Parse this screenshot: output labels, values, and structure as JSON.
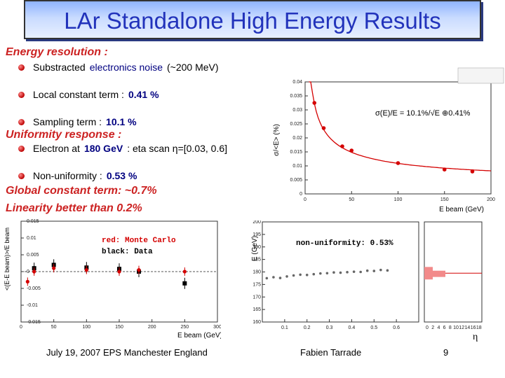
{
  "title": "LAr Standalone High Energy Results",
  "energy_resolution": {
    "heading": "Energy resolution :",
    "b1_pre": "Substracted ",
    "b1_hl": "electronics noise",
    "b1_post": " (~200 MeV)",
    "b2_pre": "Local constant term : ",
    "b2_hl": "0.41 %",
    "b3_pre": "Sampling term : ",
    "b3_hl": "10.1 %"
  },
  "uniformity": {
    "heading": "Uniformity response :",
    "b1_pre": "Electron at ",
    "b1_hl": "180 GeV",
    "b1_post": " : eta scan  η=[0.03, 0.6]",
    "b2_pre": "Non-uniformity : ",
    "b2_hl": "0.53 %"
  },
  "global_constant": "Global constant term: ~0.7%",
  "linearity": "Linearity better than 0.2%",
  "footer": {
    "date": "July 19, 2007  EPS Manchester England",
    "author": "Fabien Tarrade",
    "page": "9"
  },
  "chart_data": [
    {
      "type": "scatter",
      "title": "Energy resolution vs beam energy",
      "ylabel": "σ/<E> (%)",
      "xlabel": "E beam (GeV)",
      "annotation": "σ(E)/E = 10.1%/√E ⊕0.41%",
      "xlim": [
        0,
        200
      ],
      "ylim": [
        0,
        0.04
      ],
      "xticks": [
        "0",
        "50",
        "100",
        "150",
        "200"
      ],
      "yticks": [
        "0",
        "0.005",
        "0.01",
        "0.015",
        "0.02",
        "0.025",
        "0.03",
        "0.035",
        "0.04"
      ],
      "x": [
        10,
        20,
        40,
        50,
        100,
        150,
        180
      ],
      "y": [
        0.0325,
        0.0235,
        0.017,
        0.0155,
        0.011,
        0.0087,
        0.008
      ],
      "fit_terms": {
        "a": 0.101,
        "c": 0.0041
      }
    },
    {
      "type": "scatter",
      "title": "Linearity",
      "ylabel": "<(E-E beam)>/E beam",
      "xlabel": "E beam (GeV)",
      "legend": [
        "red: Monte Carlo",
        "black: Data"
      ],
      "xlim": [
        0,
        300
      ],
      "ylim": [
        -0.015,
        0.015
      ],
      "xticks": [
        "0",
        "50",
        "100",
        "150",
        "200",
        "250",
        "300"
      ],
      "yticks": [
        "0.015",
        "0.01",
        "0.005",
        "0",
        "-0.005",
        "-0.01",
        "-0.015"
      ],
      "series": [
        {
          "name": "Monte Carlo",
          "x": [
            10,
            20,
            50,
            100,
            150,
            180,
            250
          ],
          "y": [
            -0.003,
            0.0,
            0.001,
            0.0005,
            0.0,
            0.0005,
            0.0
          ]
        },
        {
          "name": "Data",
          "x": [
            20,
            50,
            100,
            150,
            180,
            250
          ],
          "y": [
            0.001,
            0.002,
            0.0012,
            0.0008,
            0.0,
            -0.0035
          ]
        }
      ]
    },
    {
      "type": "scatter",
      "title": "Uniformity",
      "ylabel": "E (GeV)",
      "xlabel": "η",
      "annotation": "non-uniformity: 0.53%",
      "xlim": [
        0,
        0.7
      ],
      "ylim": [
        160,
        200
      ],
      "xticks": [
        "0.1",
        "0.2",
        "0.3",
        "0.4",
        "0.5",
        "0.6"
      ],
      "yticks": [
        "160",
        "165",
        "170",
        "175",
        "180",
        "185",
        "190",
        "195",
        "200"
      ],
      "x": [
        0.02,
        0.05,
        0.08,
        0.11,
        0.14,
        0.17,
        0.2,
        0.23,
        0.26,
        0.29,
        0.32,
        0.35,
        0.38,
        0.41,
        0.44,
        0.47,
        0.5,
        0.53,
        0.56
      ],
      "y": [
        177.5,
        177.9,
        177.6,
        178.2,
        178.6,
        178.9,
        178.8,
        179.1,
        179.4,
        179.5,
        179.8,
        179.7,
        179.9,
        180.1,
        180.0,
        180.5,
        180.4,
        180.8,
        180.6
      ],
      "hist_xticks": [
        "0",
        "2",
        "4",
        "6",
        "8",
        "10",
        "12",
        "14",
        "16",
        "18"
      ]
    }
  ]
}
